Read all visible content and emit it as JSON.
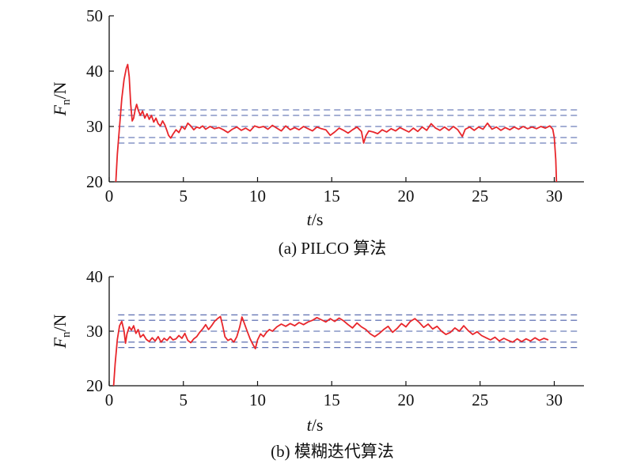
{
  "chart_data": [
    {
      "type": "line",
      "caption": "(a) PILCO 算法",
      "xlabel": {
        "var": "t",
        "unit": "/s"
      },
      "ylabel": {
        "var": "F",
        "sub": "n",
        "unit": "/N"
      },
      "xlim": [
        0,
        32
      ],
      "ylim": [
        20,
        50
      ],
      "xticks": [
        "0",
        "5",
        "10",
        "15",
        "20",
        "25",
        "30"
      ],
      "yticks": [
        "20",
        "30",
        "40",
        "50"
      ],
      "reference_lines": [
        33,
        32,
        30,
        28,
        27
      ],
      "grid": false,
      "series": [
        {
          "color": "#e8262b",
          "points": [
            [
              0.45,
              20
            ],
            [
              0.55,
              25
            ],
            [
              0.7,
              30
            ],
            [
              0.85,
              35
            ],
            [
              1.0,
              38.5
            ],
            [
              1.15,
              40.5
            ],
            [
              1.25,
              41.2
            ],
            [
              1.35,
              39
            ],
            [
              1.45,
              34
            ],
            [
              1.55,
              31
            ],
            [
              1.65,
              31.5
            ],
            [
              1.75,
              33
            ],
            [
              1.85,
              34
            ],
            [
              1.95,
              33
            ],
            [
              2.1,
              32
            ],
            [
              2.25,
              32.8
            ],
            [
              2.4,
              31.5
            ],
            [
              2.55,
              32.3
            ],
            [
              2.7,
              31.3
            ],
            [
              2.85,
              32
            ],
            [
              3.0,
              30.8
            ],
            [
              3.15,
              31.5
            ],
            [
              3.3,
              30.5
            ],
            [
              3.45,
              30.1
            ],
            [
              3.6,
              31.0
            ],
            [
              3.75,
              30.3
            ],
            [
              3.9,
              29.2
            ],
            [
              4.0,
              28.4
            ],
            [
              4.15,
              27.9
            ],
            [
              4.3,
              28.6
            ],
            [
              4.5,
              29.4
            ],
            [
              4.7,
              28.9
            ],
            [
              4.9,
              30.0
            ],
            [
              5.1,
              29.5
            ],
            [
              5.3,
              30.6
            ],
            [
              5.5,
              30.1
            ],
            [
              5.7,
              29.4
            ],
            [
              5.9,
              29.9
            ],
            [
              6.1,
              29.7
            ],
            [
              6.3,
              30.1
            ],
            [
              6.5,
              29.5
            ],
            [
              6.8,
              30.0
            ],
            [
              7.1,
              29.6
            ],
            [
              7.4,
              29.8
            ],
            [
              7.7,
              29.4
            ],
            [
              8.0,
              28.9
            ],
            [
              8.3,
              29.5
            ],
            [
              8.6,
              29.9
            ],
            [
              8.9,
              29.3
            ],
            [
              9.2,
              29.7
            ],
            [
              9.5,
              29.2
            ],
            [
              9.8,
              30.1
            ],
            [
              10.1,
              29.8
            ],
            [
              10.4,
              30.0
            ],
            [
              10.7,
              29.5
            ],
            [
              11.0,
              30.2
            ],
            [
              11.3,
              29.7
            ],
            [
              11.6,
              29.2
            ],
            [
              11.9,
              30.1
            ],
            [
              12.2,
              29.4
            ],
            [
              12.5,
              29.8
            ],
            [
              12.8,
              29.4
            ],
            [
              13.1,
              30.0
            ],
            [
              13.4,
              29.6
            ],
            [
              13.7,
              29.2
            ],
            [
              14.0,
              29.9
            ],
            [
              14.3,
              29.6
            ],
            [
              14.6,
              29.4
            ],
            [
              14.9,
              28.4
            ],
            [
              15.2,
              29.0
            ],
            [
              15.5,
              29.7
            ],
            [
              15.8,
              29.3
            ],
            [
              16.1,
              28.8
            ],
            [
              16.4,
              29.4
            ],
            [
              16.7,
              29.9
            ],
            [
              17.0,
              29.1
            ],
            [
              17.15,
              27.0
            ],
            [
              17.3,
              28.3
            ],
            [
              17.5,
              29.2
            ],
            [
              17.8,
              29.0
            ],
            [
              18.1,
              28.7
            ],
            [
              18.4,
              29.4
            ],
            [
              18.7,
              29.0
            ],
            [
              19.0,
              29.6
            ],
            [
              19.3,
              29.2
            ],
            [
              19.6,
              29.8
            ],
            [
              19.9,
              29.4
            ],
            [
              20.2,
              29.0
            ],
            [
              20.5,
              29.7
            ],
            [
              20.8,
              29.1
            ],
            [
              21.1,
              29.9
            ],
            [
              21.4,
              29.3
            ],
            [
              21.7,
              30.5
            ],
            [
              22.0,
              29.7
            ],
            [
              22.3,
              29.3
            ],
            [
              22.6,
              29.9
            ],
            [
              22.9,
              29.3
            ],
            [
              23.2,
              30.0
            ],
            [
              23.5,
              29.4
            ],
            [
              23.8,
              28.2
            ],
            [
              24.0,
              29.5
            ],
            [
              24.3,
              29.9
            ],
            [
              24.6,
              29.3
            ],
            [
              24.9,
              29.9
            ],
            [
              25.2,
              29.5
            ],
            [
              25.5,
              30.6
            ],
            [
              25.8,
              29.5
            ],
            [
              26.1,
              29.9
            ],
            [
              26.4,
              29.3
            ],
            [
              26.7,
              29.8
            ],
            [
              27.0,
              29.4
            ],
            [
              27.3,
              29.9
            ],
            [
              27.6,
              29.5
            ],
            [
              27.9,
              30.0
            ],
            [
              28.2,
              29.6
            ],
            [
              28.5,
              29.9
            ],
            [
              28.8,
              29.6
            ],
            [
              29.1,
              30.0
            ],
            [
              29.4,
              29.7
            ],
            [
              29.7,
              30.1
            ],
            [
              29.9,
              29.5
            ],
            [
              30.0,
              28
            ],
            [
              30.1,
              24
            ],
            [
              30.15,
              20
            ]
          ]
        }
      ]
    },
    {
      "type": "line",
      "caption": "(b) 模糊迭代算法",
      "xlabel": {
        "var": "t",
        "unit": "/s"
      },
      "ylabel": {
        "var": "F",
        "sub": "n",
        "unit": "/N"
      },
      "xlim": [
        0,
        32
      ],
      "ylim": [
        20,
        40
      ],
      "xticks": [
        "0",
        "5",
        "10",
        "15",
        "20",
        "25",
        "30"
      ],
      "yticks": [
        "20",
        "30",
        "40"
      ],
      "reference_lines": [
        33,
        32,
        30,
        28,
        27
      ],
      "grid": false,
      "series": [
        {
          "color": "#e8262b",
          "points": [
            [
              0.3,
              20
            ],
            [
              0.4,
              24
            ],
            [
              0.55,
              28.5
            ],
            [
              0.7,
              31.0
            ],
            [
              0.85,
              31.8
            ],
            [
              1.0,
              30.0
            ],
            [
              1.1,
              27.8
            ],
            [
              1.2,
              29.5
            ],
            [
              1.35,
              30.8
            ],
            [
              1.5,
              30.2
            ],
            [
              1.65,
              31.0
            ],
            [
              1.8,
              29.6
            ],
            [
              1.95,
              30.3
            ],
            [
              2.1,
              28.9
            ],
            [
              2.3,
              29.4
            ],
            [
              2.5,
              28.5
            ],
            [
              2.7,
              28.1
            ],
            [
              2.9,
              28.8
            ],
            [
              3.1,
              28.2
            ],
            [
              3.3,
              29.0
            ],
            [
              3.5,
              28.0
            ],
            [
              3.7,
              28.7
            ],
            [
              3.9,
              28.3
            ],
            [
              4.1,
              29.0
            ],
            [
              4.3,
              28.4
            ],
            [
              4.5,
              28.6
            ],
            [
              4.7,
              29.2
            ],
            [
              4.9,
              28.7
            ],
            [
              5.1,
              29.6
            ],
            [
              5.3,
              28.3
            ],
            [
              5.5,
              27.9
            ],
            [
              5.7,
              28.6
            ],
            [
              5.9,
              29.0
            ],
            [
              6.1,
              29.8
            ],
            [
              6.3,
              30.4
            ],
            [
              6.5,
              31.2
            ],
            [
              6.7,
              30.3
            ],
            [
              6.9,
              31.0
            ],
            [
              7.1,
              31.8
            ],
            [
              7.3,
              32.3
            ],
            [
              7.5,
              32.7
            ],
            [
              7.65,
              31.0
            ],
            [
              7.8,
              29.0
            ],
            [
              8.0,
              28.3
            ],
            [
              8.2,
              28.6
            ],
            [
              8.4,
              28.0
            ],
            [
              8.6,
              29.0
            ],
            [
              8.8,
              30.8
            ],
            [
              8.95,
              32.6
            ],
            [
              9.1,
              31.5
            ],
            [
              9.3,
              30.0
            ],
            [
              9.5,
              28.6
            ],
            [
              9.7,
              27.5
            ],
            [
              9.85,
              26.8
            ],
            [
              10.0,
              28.4
            ],
            [
              10.2,
              29.5
            ],
            [
              10.4,
              29.0
            ],
            [
              10.6,
              29.8
            ],
            [
              10.8,
              30.3
            ],
            [
              11.0,
              30.0
            ],
            [
              11.3,
              30.8
            ],
            [
              11.6,
              31.3
            ],
            [
              11.9,
              30.9
            ],
            [
              12.2,
              31.4
            ],
            [
              12.5,
              31.0
            ],
            [
              12.8,
              31.6
            ],
            [
              13.1,
              31.2
            ],
            [
              13.4,
              31.7
            ],
            [
              13.7,
              32.0
            ],
            [
              14.0,
              32.5
            ],
            [
              14.3,
              32.1
            ],
            [
              14.6,
              31.7
            ],
            [
              14.9,
              32.3
            ],
            [
              15.2,
              31.8
            ],
            [
              15.5,
              32.4
            ],
            [
              15.8,
              31.9
            ],
            [
              16.1,
              31.2
            ],
            [
              16.4,
              30.6
            ],
            [
              16.7,
              31.5
            ],
            [
              17.0,
              30.8
            ],
            [
              17.3,
              30.3
            ],
            [
              17.6,
              29.5
            ],
            [
              17.9,
              29.0
            ],
            [
              18.2,
              29.6
            ],
            [
              18.5,
              30.3
            ],
            [
              18.8,
              30.9
            ],
            [
              19.1,
              29.8
            ],
            [
              19.4,
              30.5
            ],
            [
              19.7,
              31.4
            ],
            [
              20.0,
              30.8
            ],
            [
              20.3,
              31.8
            ],
            [
              20.6,
              32.3
            ],
            [
              20.9,
              31.6
            ],
            [
              21.2,
              30.7
            ],
            [
              21.5,
              31.3
            ],
            [
              21.8,
              30.4
            ],
            [
              22.1,
              30.9
            ],
            [
              22.4,
              30.0
            ],
            [
              22.7,
              29.4
            ],
            [
              23.0,
              29.8
            ],
            [
              23.3,
              30.6
            ],
            [
              23.6,
              30.0
            ],
            [
              23.9,
              31.0
            ],
            [
              24.2,
              30.1
            ],
            [
              24.5,
              29.4
            ],
            [
              24.8,
              29.9
            ],
            [
              25.1,
              29.2
            ],
            [
              25.4,
              28.8
            ],
            [
              25.7,
              28.4
            ],
            [
              26.0,
              28.9
            ],
            [
              26.3,
              28.2
            ],
            [
              26.6,
              28.7
            ],
            [
              26.9,
              28.3
            ],
            [
              27.2,
              28.0
            ],
            [
              27.5,
              28.6
            ],
            [
              27.8,
              28.1
            ],
            [
              28.1,
              28.6
            ],
            [
              28.4,
              28.2
            ],
            [
              28.7,
              28.8
            ],
            [
              29.0,
              28.3
            ],
            [
              29.3,
              28.7
            ],
            [
              29.6,
              28.4
            ]
          ]
        }
      ]
    }
  ]
}
